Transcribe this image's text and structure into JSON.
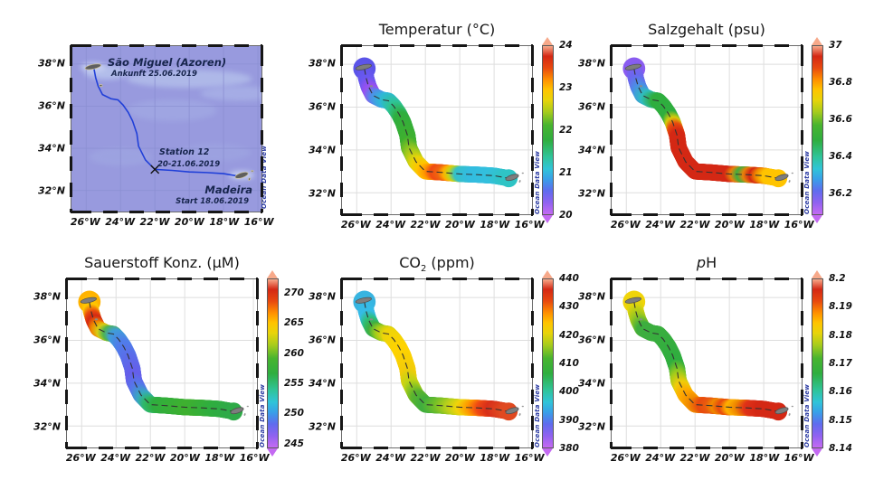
{
  "watermark": "Ocean Data View",
  "chart_data": {
    "type": "map-track-sections",
    "description": "Ship track surface sections between Madeira and Sao Miguel (Azores)",
    "projection": {
      "lon_range": [
        -26.85,
        -15.8
      ],
      "lat_range": [
        31.0,
        38.85
      ]
    },
    "axes": {
      "lon_ticks": [
        {
          "label": "26°W",
          "value": -26
        },
        {
          "label": "24°W",
          "value": -24
        },
        {
          "label": "22°W",
          "value": -22
        },
        {
          "label": "20°W",
          "value": -20
        },
        {
          "label": "18°W",
          "value": -18
        },
        {
          "label": "16°W",
          "value": -16
        }
      ],
      "lat_ticks": [
        {
          "label": "38°N",
          "value": 38
        },
        {
          "label": "36°N",
          "value": 36
        },
        {
          "label": "34°N",
          "value": 34
        },
        {
          "label": "32°N",
          "value": 32
        }
      ],
      "grid": true
    },
    "colormap": [
      [
        0,
        "#c46af2"
      ],
      [
        0.07,
        "#8f62f0"
      ],
      [
        0.14,
        "#5f6cee"
      ],
      [
        0.21,
        "#38a0e8"
      ],
      [
        0.27,
        "#30c4d8"
      ],
      [
        0.34,
        "#2fc49a"
      ],
      [
        0.44,
        "#2fae3f"
      ],
      [
        0.53,
        "#48b42f"
      ],
      [
        0.61,
        "#a8cc1c"
      ],
      [
        0.68,
        "#e8d40a"
      ],
      [
        0.74,
        "#ffc400"
      ],
      [
        0.8,
        "#ff9000"
      ],
      [
        0.87,
        "#e8490f"
      ],
      [
        0.94,
        "#d42814"
      ],
      [
        1,
        "#f7a98a"
      ]
    ],
    "track_lonlat": [
      [
        -25.55,
        37.8
      ],
      [
        -25.45,
        37.35
      ],
      [
        -25.3,
        36.95
      ],
      [
        -25.05,
        36.55
      ],
      [
        -24.55,
        36.35
      ],
      [
        -24.15,
        36.3
      ],
      [
        -23.85,
        36.05
      ],
      [
        -23.55,
        35.7
      ],
      [
        -23.3,
        35.3
      ],
      [
        -23.05,
        34.7
      ],
      [
        -22.95,
        34.1
      ],
      [
        -22.55,
        33.45
      ],
      [
        -22.0,
        33.0
      ],
      [
        -21.0,
        32.95
      ],
      [
        -20.0,
        32.88
      ],
      [
        -19.0,
        32.85
      ],
      [
        -18.0,
        32.8
      ],
      [
        -17.15,
        32.68
      ]
    ],
    "station_marker": {
      "lon": -22.0,
      "lat": 33.0
    },
    "islands": [
      {
        "lon": -25.6,
        "lat": 37.87,
        "rx": 9,
        "ry": 2.6,
        "rot": -12,
        "color": "#7d7d7d",
        "stroke": "#4f4f4f"
      },
      {
        "lon": -25.15,
        "lat": 36.98,
        "rx": 1.7,
        "ry": 1.1,
        "rot": 0,
        "color": "#8a8a8a"
      },
      {
        "lon": -16.95,
        "lat": 32.72,
        "rx": 7.5,
        "ry": 2.8,
        "rot": -18,
        "color": "#7d7d7d",
        "stroke": "#4f4f4f"
      },
      {
        "lon": -16.33,
        "lat": 32.92,
        "rx": 1.2,
        "ry": 0.8,
        "rot": 0,
        "color": "#9a9a9a"
      },
      {
        "lon": -16.5,
        "lat": 32.54,
        "rx": 0.9,
        "ry": 1.5,
        "rot": 20,
        "color": "#9a9a9a"
      }
    ],
    "map_panel": {
      "sea_color": "#989ade",
      "grid_color": "#8b8fd2",
      "track_color": "#1f3fd8",
      "island_color": "#5f5f5f",
      "island_outline": "#cfc49a",
      "labels": {
        "island_top": "São Miguel (Azoren)",
        "arrival": "Ankunft 25.06.2019",
        "station": "Station 12",
        "station_date": "20-21.06.2019",
        "island_bottom": "Madeira",
        "start": "Start 18.06.2019"
      }
    },
    "panels": [
      {
        "id": "temperatur",
        "title": "Temperatur (°C)",
        "colorbar": {
          "min": 20,
          "max": 24,
          "ticks": [
            {
              "label": "24",
              "value": 24
            },
            {
              "label": "23",
              "value": 23
            },
            {
              "label": "22",
              "value": 22
            },
            {
              "label": "21",
              "value": 21
            },
            {
              "label": "20",
              "value": 20
            }
          ]
        },
        "track_stops": [
          [
            0,
            "#5b54e8"
          ],
          [
            0.08,
            "#6a58f0"
          ],
          [
            0.125,
            "#9a50f0"
          ],
          [
            0.165,
            "#4f8ee8"
          ],
          [
            0.21,
            "#2fb8d8"
          ],
          [
            0.27,
            "#2fc496"
          ],
          [
            0.33,
            "#2fae3f"
          ],
          [
            0.45,
            "#3fb02f"
          ],
          [
            0.51,
            "#9cc81f"
          ],
          [
            0.56,
            "#e8d40a"
          ],
          [
            0.6,
            "#ffc400"
          ],
          [
            0.635,
            "#ff9900"
          ],
          [
            0.665,
            "#f04a14"
          ],
          [
            0.7,
            "#f0660f"
          ],
          [
            0.725,
            "#ffae00"
          ],
          [
            0.75,
            "#c8d414"
          ],
          [
            0.78,
            "#35c0c8"
          ],
          [
            0.84,
            "#33bce0"
          ],
          [
            0.93,
            "#33c0dd"
          ],
          [
            1,
            "#2fc4c4"
          ]
        ]
      },
      {
        "id": "salzgehalt",
        "title": "Salzgehalt (psu)",
        "colorbar": {
          "min": 36.08,
          "max": 37.0,
          "ticks": [
            {
              "label": "37",
              "value": 37
            },
            {
              "label": "36.8",
              "value": 36.8
            },
            {
              "label": "36.6",
              "value": 36.6
            },
            {
              "label": "36.4",
              "value": 36.4
            },
            {
              "label": "36.2",
              "value": 36.2
            }
          ]
        },
        "track_stops": [
          [
            0,
            "#8a5cf0"
          ],
          [
            0.07,
            "#6a68ee"
          ],
          [
            0.12,
            "#4a90e4"
          ],
          [
            0.17,
            "#30bcc0"
          ],
          [
            0.22,
            "#2fae3f"
          ],
          [
            0.32,
            "#2fae3f"
          ],
          [
            0.355,
            "#d8cc0a"
          ],
          [
            0.385,
            "#e84a0f"
          ],
          [
            0.42,
            "#d42814"
          ],
          [
            0.78,
            "#d42814"
          ],
          [
            0.81,
            "#e8820a"
          ],
          [
            0.84,
            "#3fae3f"
          ],
          [
            0.87,
            "#e8820a"
          ],
          [
            0.9,
            "#d42814"
          ],
          [
            0.93,
            "#f08a00"
          ],
          [
            0.96,
            "#ffc400"
          ],
          [
            1,
            "#ffc400"
          ]
        ]
      },
      {
        "id": "sauerstoff",
        "title": "Sauerstoff Konz. (µM)",
        "colorbar": {
          "min": 244.2,
          "max": 272.4,
          "ticks": [
            {
              "label": "270",
              "value": 270
            },
            {
              "label": "265",
              "value": 265
            },
            {
              "label": "260",
              "value": 260
            },
            {
              "label": "255",
              "value": 255
            },
            {
              "label": "250",
              "value": 250
            },
            {
              "label": "245",
              "value": 245
            }
          ]
        },
        "track_stops": [
          [
            0,
            "#ffb300"
          ],
          [
            0.05,
            "#ffc800"
          ],
          [
            0.085,
            "#e8490f"
          ],
          [
            0.11,
            "#d42814"
          ],
          [
            0.145,
            "#f08a00"
          ],
          [
            0.175,
            "#d8cc14"
          ],
          [
            0.205,
            "#4fb44f"
          ],
          [
            0.24,
            "#3f9ed8"
          ],
          [
            0.3,
            "#4f7fea"
          ],
          [
            0.38,
            "#5c6cea"
          ],
          [
            0.46,
            "#665eea"
          ],
          [
            0.52,
            "#5577ea"
          ],
          [
            0.57,
            "#38a8c0"
          ],
          [
            0.61,
            "#2fb86a"
          ],
          [
            0.65,
            "#2fae3f"
          ],
          [
            0.8,
            "#3fb02f"
          ],
          [
            0.92,
            "#2fae3f"
          ],
          [
            1,
            "#2faa48"
          ]
        ]
      },
      {
        "id": "co2",
        "title_parts": {
          "base": "CO",
          "sub": "2",
          "suffix": " (ppm)"
        },
        "colorbar": {
          "min": 380,
          "max": 440,
          "ticks": [
            {
              "label": "440",
              "value": 440
            },
            {
              "label": "430",
              "value": 430
            },
            {
              "label": "420",
              "value": 420
            },
            {
              "label": "410",
              "value": 410
            },
            {
              "label": "400",
              "value": 400
            },
            {
              "label": "390",
              "value": 390
            },
            {
              "label": "380",
              "value": 380
            }
          ]
        },
        "track_stops": [
          [
            0,
            "#38b4e0"
          ],
          [
            0.08,
            "#35bce8"
          ],
          [
            0.12,
            "#2fbe7a"
          ],
          [
            0.155,
            "#3fae3f"
          ],
          [
            0.19,
            "#a0cc1c"
          ],
          [
            0.23,
            "#ecd40a"
          ],
          [
            0.33,
            "#ffd300"
          ],
          [
            0.44,
            "#f2cc0a"
          ],
          [
            0.5,
            "#c0d414"
          ],
          [
            0.565,
            "#5ab42f"
          ],
          [
            0.62,
            "#3fae3f"
          ],
          [
            0.68,
            "#6fbe2a"
          ],
          [
            0.74,
            "#b8d01c"
          ],
          [
            0.79,
            "#f2d40a"
          ],
          [
            0.84,
            "#ff9900"
          ],
          [
            0.885,
            "#f04a14"
          ],
          [
            0.93,
            "#d8301a"
          ],
          [
            1,
            "#e04a20"
          ]
        ]
      },
      {
        "id": "ph",
        "title_parts": {
          "italic": "p",
          "rest": "H"
        },
        "colorbar": {
          "min": 8.14,
          "max": 8.2,
          "ticks": [
            {
              "label": "8.2",
              "value": 8.2
            },
            {
              "label": "8.19",
              "value": 8.19
            },
            {
              "label": "8.18",
              "value": 8.18
            },
            {
              "label": "8.17",
              "value": 8.17
            },
            {
              "label": "8.16",
              "value": 8.16
            },
            {
              "label": "8.15",
              "value": 8.15
            },
            {
              "label": "8.14",
              "value": 8.14
            }
          ]
        },
        "track_stops": [
          [
            0,
            "#f0d40a"
          ],
          [
            0.05,
            "#e0d40c"
          ],
          [
            0.1,
            "#9cc81f"
          ],
          [
            0.15,
            "#3fae3f"
          ],
          [
            0.4,
            "#2fae3f"
          ],
          [
            0.46,
            "#a0cc1c"
          ],
          [
            0.51,
            "#f0cc0a"
          ],
          [
            0.56,
            "#ffa800"
          ],
          [
            0.61,
            "#f08a00"
          ],
          [
            0.655,
            "#e8490f"
          ],
          [
            0.69,
            "#e85a0f"
          ],
          [
            0.72,
            "#f08a00"
          ],
          [
            0.755,
            "#e8490f"
          ],
          [
            0.79,
            "#ffb300"
          ],
          [
            0.83,
            "#f08a00"
          ],
          [
            0.875,
            "#e03318"
          ],
          [
            0.93,
            "#d42814"
          ],
          [
            1,
            "#d42814"
          ]
        ]
      }
    ]
  }
}
